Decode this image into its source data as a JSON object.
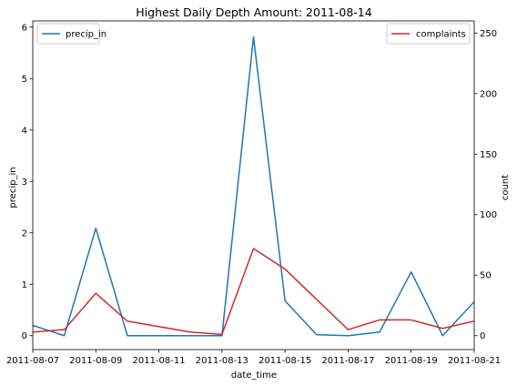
{
  "chart_data": {
    "type": "line",
    "title": "Highest Daily Depth Amount: 2011-08-14",
    "xlabel": "date_time",
    "ylabel_left": "precip_in",
    "ylabel_right": "count",
    "x_ticks": [
      "2011-08-07",
      "2011-08-09",
      "2011-08-11",
      "2011-08-13",
      "2011-08-15",
      "2011-08-17",
      "2011-08-19",
      "2011-08-21"
    ],
    "y_left_ticks": [
      "0",
      "1",
      "2",
      "3",
      "4",
      "5",
      "6"
    ],
    "y_right_ticks": [
      "0",
      "50",
      "100",
      "150",
      "200",
      "250"
    ],
    "xlim": [
      "2011-08-07",
      "2011-08-21"
    ],
    "ylim_left": [
      -0.27,
      6.12
    ],
    "ylim_right": [
      -11.5,
      260
    ],
    "series": [
      {
        "name": "precip_in",
        "axis": "left",
        "color": "#1f77b4",
        "legend_position": "upper left",
        "x": [
          "2011-08-07",
          "2011-08-08",
          "2011-08-09",
          "2011-08-10",
          "2011-08-11",
          "2011-08-12",
          "2011-08-13",
          "2011-08-14",
          "2011-08-15",
          "2011-08-16",
          "2011-08-17",
          "2011-08-18",
          "2011-08-19",
          "2011-08-20",
          "2011-08-21"
        ],
        "y": [
          0.2,
          0.0,
          2.09,
          0.0,
          0.0,
          0.0,
          0.0,
          5.81,
          0.68,
          0.02,
          0.0,
          0.07,
          1.24,
          0.0,
          0.66
        ]
      },
      {
        "name": "complaints",
        "axis": "right",
        "color": "#d62728",
        "legend_position": "upper right",
        "x": [
          "2011-08-07",
          "2011-08-08",
          "2011-08-09",
          "2011-08-10",
          "2011-08-12",
          "2011-08-13",
          "2011-08-14",
          "2011-08-15",
          "2011-08-17",
          "2011-08-18",
          "2011-08-19",
          "2011-08-20",
          "2011-08-21"
        ],
        "y": [
          3,
          5,
          35,
          12,
          3,
          1,
          72,
          55,
          5,
          13,
          13,
          6,
          12
        ]
      }
    ]
  }
}
